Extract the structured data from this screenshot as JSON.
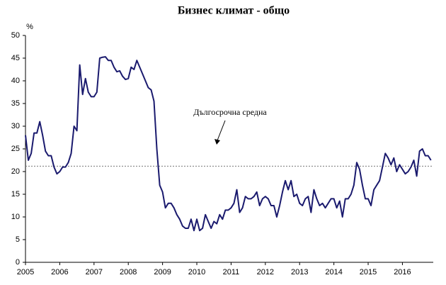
{
  "chart_data": {
    "type": "line",
    "title": "Бизнес климат - общо",
    "y_unit": "%",
    "annotation": "Дългосрочна средна",
    "average": 21.2,
    "average_color": "#777777",
    "xlim": [
      2005,
      2016.9
    ],
    "xticks": [
      2005,
      2006,
      2007,
      2008,
      2009,
      2010,
      2011,
      2012,
      2013,
      2014,
      2015,
      2016
    ],
    "ylim": [
      0,
      50
    ],
    "yticks": [
      0,
      5,
      10,
      15,
      20,
      25,
      30,
      35,
      40,
      45,
      50
    ],
    "x": [
      2005,
      2005.083,
      2005.167,
      2005.25,
      2005.333,
      2005.417,
      2005.5,
      2005.583,
      2005.667,
      2005.75,
      2005.833,
      2005.917,
      2006,
      2006.083,
      2006.167,
      2006.25,
      2006.333,
      2006.417,
      2006.5,
      2006.583,
      2006.667,
      2006.75,
      2006.833,
      2006.917,
      2007,
      2007.083,
      2007.167,
      2007.25,
      2007.333,
      2007.417,
      2007.5,
      2007.583,
      2007.667,
      2007.75,
      2007.833,
      2007.917,
      2008,
      2008.083,
      2008.167,
      2008.25,
      2008.333,
      2008.417,
      2008.5,
      2008.583,
      2008.667,
      2008.75,
      2008.833,
      2008.917,
      2009,
      2009.083,
      2009.167,
      2009.25,
      2009.333,
      2009.417,
      2009.5,
      2009.583,
      2009.667,
      2009.75,
      2009.833,
      2009.917,
      2010,
      2010.083,
      2010.167,
      2010.25,
      2010.333,
      2010.417,
      2010.5,
      2010.583,
      2010.667,
      2010.75,
      2010.833,
      2010.917,
      2011,
      2011.083,
      2011.167,
      2011.25,
      2011.333,
      2011.417,
      2011.5,
      2011.583,
      2011.667,
      2011.75,
      2011.833,
      2011.917,
      2012,
      2012.083,
      2012.167,
      2012.25,
      2012.333,
      2012.417,
      2012.5,
      2012.583,
      2012.667,
      2012.75,
      2012.833,
      2012.917,
      2013,
      2013.083,
      2013.167,
      2013.25,
      2013.333,
      2013.417,
      2013.5,
      2013.583,
      2013.667,
      2013.75,
      2013.833,
      2013.917,
      2014,
      2014.083,
      2014.167,
      2014.25,
      2014.333,
      2014.417,
      2014.5,
      2014.583,
      2014.667,
      2014.75,
      2014.833,
      2014.917,
      2015,
      2015.083,
      2015.167,
      2015.25,
      2015.333,
      2015.417,
      2015.5,
      2015.583,
      2015.667,
      2015.75,
      2015.833,
      2015.917,
      2016,
      2016.083,
      2016.167,
      2016.25,
      2016.333,
      2016.417,
      2016.5,
      2016.583,
      2016.667,
      2016.75,
      2016.833
    ],
    "series": [
      {
        "color": "#1a1a6e",
        "values": [
          28,
          22.5,
          24,
          28.5,
          28.5,
          31,
          28,
          24.5,
          23.5,
          23.5,
          21,
          19.5,
          20,
          21,
          21,
          22,
          24,
          30,
          29,
          43.5,
          37,
          40.5,
          37.5,
          36.5,
          36.5,
          37.5,
          45,
          45.2,
          45.3,
          44.5,
          44.5,
          43,
          42,
          42.2,
          41,
          40.3,
          40.5,
          43,
          42.5,
          44.5,
          43,
          41.5,
          40,
          38.5,
          38,
          35.5,
          25,
          17,
          15.5,
          12,
          13,
          13,
          12,
          10.5,
          9.5,
          8,
          7.5,
          7.5,
          9.5,
          7,
          9.5,
          7,
          7.5,
          10.5,
          9,
          7.5,
          9,
          8.5,
          10.5,
          9.5,
          11.5,
          11.5,
          12,
          13,
          16,
          11,
          12,
          14.5,
          14,
          14,
          14.5,
          15.5,
          12.5,
          14,
          14.5,
          14,
          12.5,
          12.5,
          10,
          12.5,
          15.5,
          18,
          16,
          18,
          14.5,
          15,
          13,
          12.5,
          14,
          14.5,
          11,
          16,
          14,
          12.5,
          13,
          12,
          13,
          14,
          14,
          12,
          13.5,
          10,
          14,
          14,
          15,
          17,
          22,
          20.5,
          17,
          14,
          14,
          12.5,
          16,
          17,
          18,
          21,
          24,
          23,
          21.5,
          23,
          20,
          21.5,
          20.5,
          19.5,
          20,
          21,
          22.5,
          19,
          24.5,
          25,
          23.5,
          23.5,
          22.5
        ]
      }
    ]
  }
}
